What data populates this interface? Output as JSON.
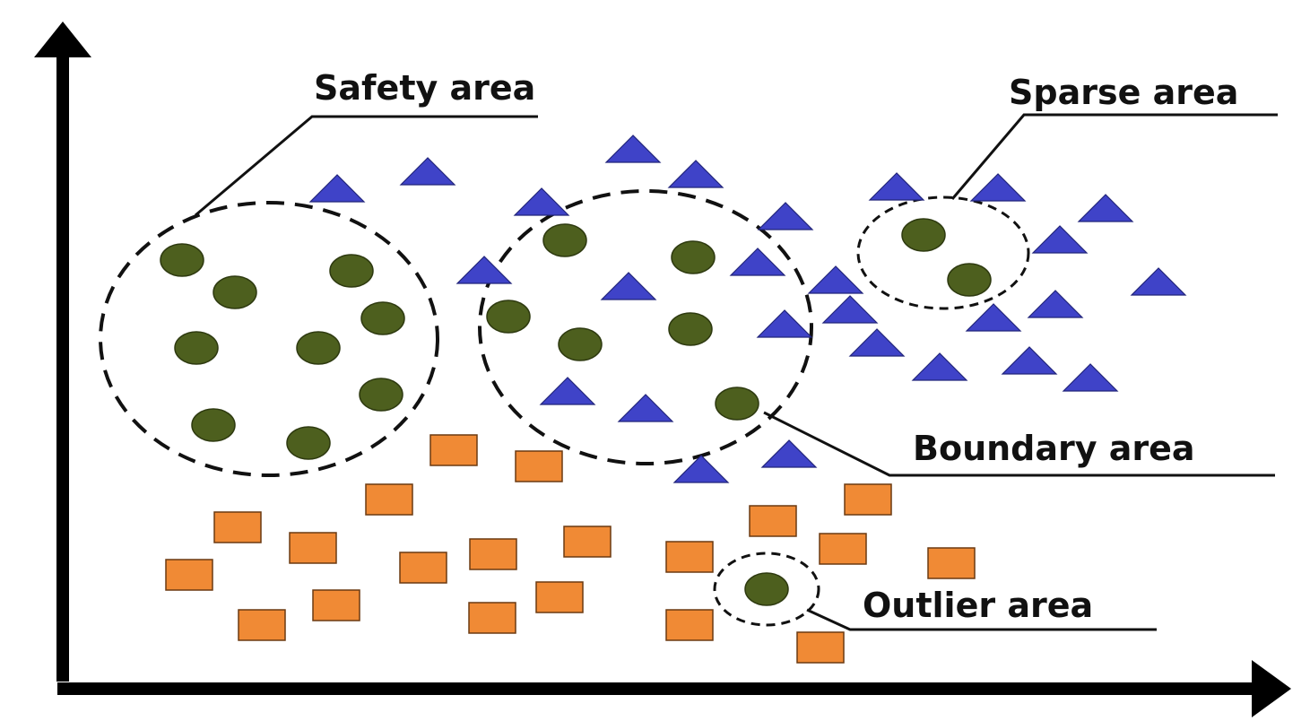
{
  "labels": {
    "safety": "Safety area",
    "sparse": "Sparse area",
    "boundary": "Boundary area",
    "outlier": "Outlier area"
  },
  "colors": {
    "circle_fill": "#4d5f1e",
    "triangle_fill": "#3f43c8",
    "square_fill": "#f08a35",
    "axis": "#000000"
  },
  "shapes": {
    "circle": "green-circle-point",
    "triangle": "blue-triangle-point",
    "square": "orange-square-point"
  }
}
